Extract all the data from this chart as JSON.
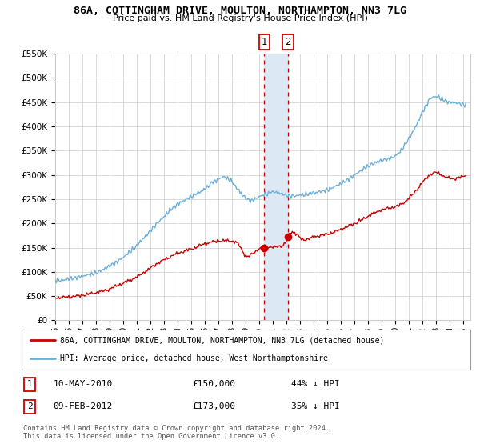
{
  "title": "86A, COTTINGHAM DRIVE, MOULTON, NORTHAMPTON, NN3 7LG",
  "subtitle": "Price paid vs. HM Land Registry's House Price Index (HPI)",
  "legend_line1": "86A, COTTINGHAM DRIVE, MOULTON, NORTHAMPTON, NN3 7LG (detached house)",
  "legend_line2": "HPI: Average price, detached house, West Northamptonshire",
  "table_row1": [
    "1",
    "10-MAY-2010",
    "£150,000",
    "44% ↓ HPI"
  ],
  "table_row2": [
    "2",
    "09-FEB-2012",
    "£173,000",
    "35% ↓ HPI"
  ],
  "footer": "Contains HM Land Registry data © Crown copyright and database right 2024.\nThis data is licensed under the Open Government Licence v3.0.",
  "hpi_color": "#6baed6",
  "price_color": "#cc0000",
  "marker_color": "#cc0000",
  "vline_color": "#cc0000",
  "shade_color": "#dce9f5",
  "background_color": "#ffffff",
  "grid_color": "#cccccc",
  "ylim": [
    0,
    550000
  ],
  "yticks": [
    0,
    50000,
    100000,
    150000,
    200000,
    250000,
    300000,
    350000,
    400000,
    450000,
    500000,
    550000
  ],
  "sale1_x": 2010.36,
  "sale1_y": 150000,
  "sale2_x": 2012.11,
  "sale2_y": 173000,
  "xmin": 1995.0,
  "xmax": 2025.5
}
